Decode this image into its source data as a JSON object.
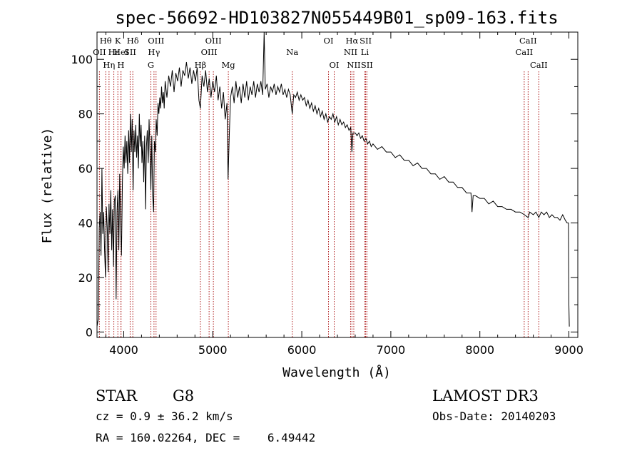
{
  "chart_data": {
    "type": "line",
    "title": "spec-56692-HD103827N055449B01_sp09-163.fits",
    "xlabel": "Wavelength (Å)",
    "ylabel": "Flux (relative)",
    "xlim": [
      3700,
      9100
    ],
    "ylim": [
      -2,
      110
    ],
    "xticks": [
      4000,
      5000,
      6000,
      7000,
      8000,
      9000
    ],
    "yticks": [
      0,
      20,
      40,
      60,
      80,
      100
    ],
    "grid": false,
    "series": [
      {
        "color": "#000000",
        "points": [
          [
            3700,
            2
          ],
          [
            3715,
            5
          ],
          [
            3725,
            38
          ],
          [
            3735,
            44
          ],
          [
            3745,
            28
          ],
          [
            3755,
            60
          ],
          [
            3765,
            36
          ],
          [
            3775,
            44
          ],
          [
            3785,
            30
          ],
          [
            3795,
            20
          ],
          [
            3805,
            46
          ],
          [
            3815,
            38
          ],
          [
            3825,
            22
          ],
          [
            3835,
            47
          ],
          [
            3845,
            36
          ],
          [
            3855,
            52
          ],
          [
            3865,
            30
          ],
          [
            3875,
            45
          ],
          [
            3885,
            24
          ],
          [
            3895,
            48
          ],
          [
            3905,
            50
          ],
          [
            3915,
            12
          ],
          [
            3925,
            44
          ],
          [
            3935,
            52
          ],
          [
            3945,
            30
          ],
          [
            3955,
            58
          ],
          [
            3965,
            40
          ],
          [
            3975,
            28
          ],
          [
            3985,
            55
          ],
          [
            3995,
            68
          ],
          [
            4005,
            60
          ],
          [
            4015,
            72
          ],
          [
            4025,
            62
          ],
          [
            4035,
            70
          ],
          [
            4045,
            58
          ],
          [
            4055,
            74
          ],
          [
            4065,
            62
          ],
          [
            4075,
            80
          ],
          [
            4085,
            66
          ],
          [
            4095,
            78
          ],
          [
            4105,
            52
          ],
          [
            4115,
            74
          ],
          [
            4125,
            66
          ],
          [
            4135,
            76
          ],
          [
            4145,
            64
          ],
          [
            4155,
            72
          ],
          [
            4165,
            60
          ],
          [
            4175,
            80
          ],
          [
            4185,
            68
          ],
          [
            4195,
            76
          ],
          [
            4205,
            62
          ],
          [
            4215,
            70
          ],
          [
            4225,
            55
          ],
          [
            4235,
            72
          ],
          [
            4245,
            45
          ],
          [
            4255,
            68
          ],
          [
            4265,
            74
          ],
          [
            4275,
            62
          ],
          [
            4285,
            78
          ],
          [
            4295,
            66
          ],
          [
            4305,
            52
          ],
          [
            4315,
            72
          ],
          [
            4325,
            50
          ],
          [
            4335,
            44
          ],
          [
            4345,
            70
          ],
          [
            4355,
            66
          ],
          [
            4365,
            78
          ],
          [
            4375,
            72
          ],
          [
            4385,
            84
          ],
          [
            4395,
            80
          ],
          [
            4405,
            86
          ],
          [
            4415,
            82
          ],
          [
            4425,
            90
          ],
          [
            4435,
            84
          ],
          [
            4445,
            88
          ],
          [
            4455,
            82
          ],
          [
            4465,
            92
          ],
          [
            4485,
            86
          ],
          [
            4505,
            94
          ],
          [
            4525,
            90
          ],
          [
            4545,
            96
          ],
          [
            4565,
            88
          ],
          [
            4585,
            95
          ],
          [
            4605,
            92
          ],
          [
            4625,
            97
          ],
          [
            4645,
            90
          ],
          [
            4665,
            96
          ],
          [
            4685,
            94
          ],
          [
            4705,
            99
          ],
          [
            4725,
            93
          ],
          [
            4745,
            97
          ],
          [
            4765,
            91
          ],
          [
            4785,
            96
          ],
          [
            4805,
            92
          ],
          [
            4825,
            97
          ],
          [
            4845,
            85
          ],
          [
            4861,
            82
          ],
          [
            4880,
            94
          ],
          [
            4900,
            90
          ],
          [
            4920,
            96
          ],
          [
            4940,
            88
          ],
          [
            4960,
            93
          ],
          [
            4980,
            86
          ],
          [
            5000,
            92
          ],
          [
            5020,
            88
          ],
          [
            5040,
            94
          ],
          [
            5060,
            85
          ],
          [
            5080,
            90
          ],
          [
            5100,
            82
          ],
          [
            5120,
            88
          ],
          [
            5140,
            78
          ],
          [
            5160,
            84
          ],
          [
            5172,
            56
          ],
          [
            5185,
            72
          ],
          [
            5200,
            86
          ],
          [
            5220,
            90
          ],
          [
            5240,
            84
          ],
          [
            5260,
            92
          ],
          [
            5280,
            86
          ],
          [
            5300,
            90
          ],
          [
            5320,
            84
          ],
          [
            5340,
            91
          ],
          [
            5360,
            86
          ],
          [
            5380,
            92
          ],
          [
            5400,
            85
          ],
          [
            5420,
            90
          ],
          [
            5440,
            87
          ],
          [
            5460,
            92
          ],
          [
            5480,
            86
          ],
          [
            5500,
            91
          ],
          [
            5520,
            88
          ],
          [
            5540,
            92
          ],
          [
            5560,
            87
          ],
          [
            5577,
            110
          ],
          [
            5590,
            89
          ],
          [
            5610,
            91
          ],
          [
            5630,
            86
          ],
          [
            5650,
            90
          ],
          [
            5670,
            88
          ],
          [
            5690,
            91
          ],
          [
            5710,
            87
          ],
          [
            5730,
            90
          ],
          [
            5750,
            88
          ],
          [
            5770,
            91
          ],
          [
            5790,
            87
          ],
          [
            5810,
            89
          ],
          [
            5830,
            86
          ],
          [
            5850,
            89
          ],
          [
            5870,
            87
          ],
          [
            5893,
            80
          ],
          [
            5910,
            87
          ],
          [
            5930,
            86
          ],
          [
            5950,
            88
          ],
          [
            5970,
            85
          ],
          [
            5990,
            87
          ],
          [
            6010,
            85
          ],
          [
            6030,
            86
          ],
          [
            6050,
            83
          ],
          [
            6070,
            85
          ],
          [
            6090,
            82
          ],
          [
            6110,
            84
          ],
          [
            6130,
            81
          ],
          [
            6150,
            83
          ],
          [
            6170,
            80
          ],
          [
            6190,
            82
          ],
          [
            6210,
            79
          ],
          [
            6230,
            81
          ],
          [
            6250,
            78
          ],
          [
            6270,
            80
          ],
          [
            6290,
            77
          ],
          [
            6310,
            79
          ],
          [
            6330,
            78
          ],
          [
            6350,
            80
          ],
          [
            6370,
            77
          ],
          [
            6390,
            79
          ],
          [
            6410,
            76
          ],
          [
            6430,
            78
          ],
          [
            6450,
            76
          ],
          [
            6470,
            77
          ],
          [
            6490,
            75
          ],
          [
            6510,
            76
          ],
          [
            6530,
            74
          ],
          [
            6550,
            75
          ],
          [
            6563,
            66
          ],
          [
            6575,
            73
          ],
          [
            6600,
            73
          ],
          [
            6620,
            72
          ],
          [
            6640,
            73
          ],
          [
            6660,
            71
          ],
          [
            6680,
            72
          ],
          [
            6700,
            70
          ],
          [
            6720,
            71
          ],
          [
            6740,
            69
          ],
          [
            6760,
            70
          ],
          [
            6780,
            68
          ],
          [
            6800,
            69
          ],
          [
            6850,
            67
          ],
          [
            6900,
            68
          ],
          [
            6950,
            66
          ],
          [
            7000,
            66
          ],
          [
            7050,
            64
          ],
          [
            7100,
            65
          ],
          [
            7150,
            63
          ],
          [
            7200,
            63
          ],
          [
            7250,
            61
          ],
          [
            7300,
            62
          ],
          [
            7350,
            60
          ],
          [
            7400,
            60
          ],
          [
            7450,
            58
          ],
          [
            7500,
            58
          ],
          [
            7550,
            56
          ],
          [
            7600,
            57
          ],
          [
            7650,
            55
          ],
          [
            7700,
            55
          ],
          [
            7750,
            53
          ],
          [
            7800,
            53
          ],
          [
            7850,
            51
          ],
          [
            7900,
            51
          ],
          [
            7912,
            44
          ],
          [
            7925,
            50
          ],
          [
            7950,
            50
          ],
          [
            8000,
            49
          ],
          [
            8050,
            49
          ],
          [
            8100,
            47
          ],
          [
            8150,
            48
          ],
          [
            8200,
            46
          ],
          [
            8250,
            46
          ],
          [
            8300,
            45
          ],
          [
            8350,
            45
          ],
          [
            8400,
            44
          ],
          [
            8450,
            44
          ],
          [
            8500,
            43
          ],
          [
            8542,
            42
          ],
          [
            8560,
            44
          ],
          [
            8600,
            43
          ],
          [
            8630,
            44
          ],
          [
            8662,
            42
          ],
          [
            8690,
            44
          ],
          [
            8720,
            43
          ],
          [
            8750,
            44
          ],
          [
            8780,
            42
          ],
          [
            8810,
            43
          ],
          [
            8840,
            42
          ],
          [
            8870,
            42
          ],
          [
            8900,
            41
          ],
          [
            8930,
            43
          ],
          [
            8960,
            41
          ],
          [
            8980,
            40
          ],
          [
            8995,
            40
          ],
          [
            9000,
            10
          ],
          [
            9005,
            2
          ]
        ]
      }
    ],
    "line_markers": [
      {
        "label": "Hθ",
        "x": 3798,
        "row": 0
      },
      {
        "label": "OII",
        "x": 3727,
        "row": 1
      },
      {
        "label": "Hη",
        "x": 3835,
        "row": 2
      },
      {
        "label": "Hε",
        "x": 3889,
        "row": 1
      },
      {
        "label": "K",
        "x": 3934,
        "row": 0
      },
      {
        "label": "HeI",
        "x": 3970,
        "row": 1
      },
      {
        "label": "H",
        "x": 3968,
        "row": 2
      },
      {
        "label": "Hδ",
        "x": 4102,
        "row": 0
      },
      {
        "label": "SII",
        "x": 4072,
        "row": 1
      },
      {
        "label": "OIII",
        "x": 4363,
        "row": 0
      },
      {
        "label": "Hγ",
        "x": 4340,
        "row": 1
      },
      {
        "label": "G",
        "x": 4305,
        "row": 2
      },
      {
        "label": "Hβ",
        "x": 4861,
        "row": 2
      },
      {
        "label": "OIII",
        "x": 5007,
        "row": 0
      },
      {
        "label": "OIII",
        "x": 4959,
        "row": 1
      },
      {
        "label": "Mg",
        "x": 5175,
        "row": 2
      },
      {
        "label": "Na",
        "x": 5893,
        "row": 1
      },
      {
        "label": "OI",
        "x": 6300,
        "row": 0
      },
      {
        "label": "OI",
        "x": 6364,
        "row": 2
      },
      {
        "label": "Hα",
        "x": 6563,
        "row": 0
      },
      {
        "label": "NII",
        "x": 6548,
        "row": 1
      },
      {
        "label": "NII",
        "x": 6584,
        "row": 2
      },
      {
        "label": "SII",
        "x": 6717,
        "row": 0
      },
      {
        "label": "Li",
        "x": 6708,
        "row": 1
      },
      {
        "label": "SII",
        "x": 6731,
        "row": 2
      },
      {
        "label": "CaII",
        "x": 8542,
        "row": 0
      },
      {
        "label": "CaII",
        "x": 8498,
        "row": 1
      },
      {
        "label": "CaII",
        "x": 8662,
        "row": 2
      }
    ]
  },
  "info": {
    "object_class": "STAR",
    "subclass": "G8",
    "survey": "LAMOST DR3",
    "redshift": "cz = 0.9 ± 36.2 km/s",
    "obs_date": "Obs-Date: 20140203",
    "coords": "RA = 160.02264, DEC =    6.49442"
  },
  "colors": {
    "spectrum": "#000000",
    "marker_line": "#b02020"
  }
}
